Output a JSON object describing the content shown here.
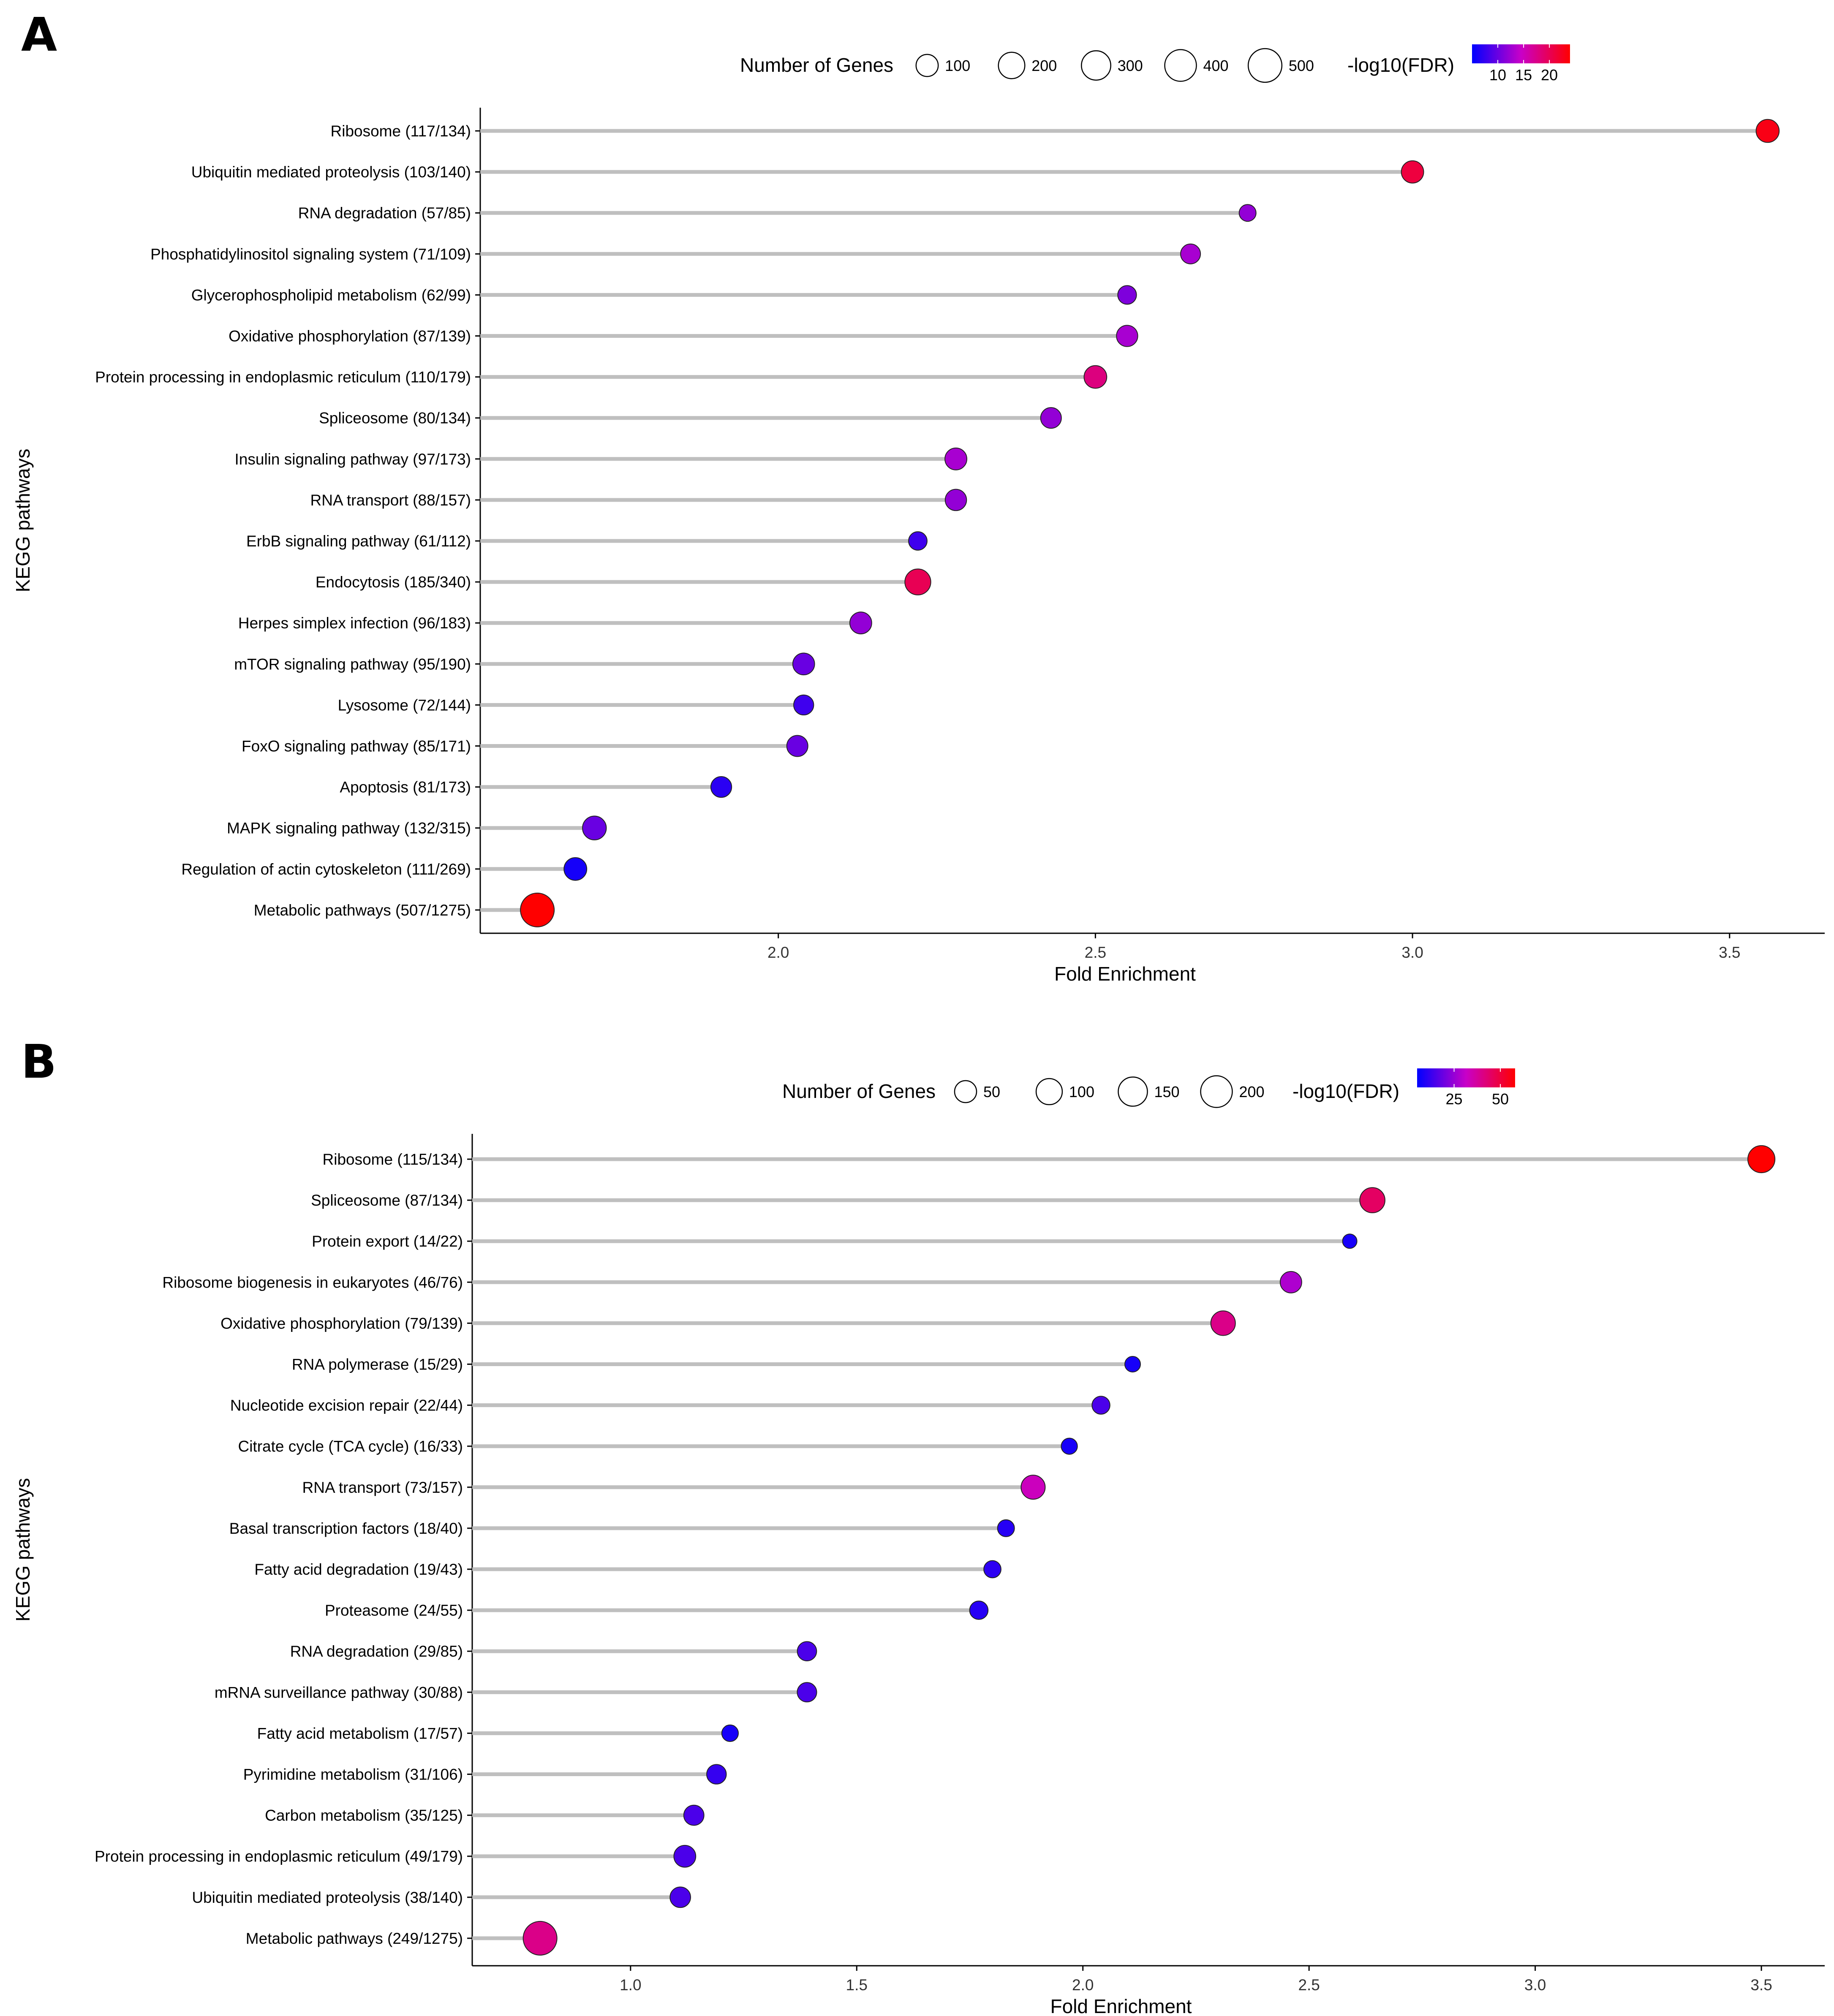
{
  "panels": [
    {
      "letter": "A",
      "chart_data": {
        "type": "scatter",
        "subtype": "lollipop",
        "title": "",
        "xlabel": "Fold Enrichment",
        "ylabel": "KEGG pathways",
        "xlim": [
          1.53,
          3.65
        ],
        "xticks": [
          {
            "v": 2.0,
            "label": "2.0"
          },
          {
            "v": 2.5,
            "label": "2.5"
          },
          {
            "v": 3.0,
            "label": "3.0"
          },
          {
            "v": 3.5,
            "label": "3.5"
          }
        ],
        "size_legend_title": "Number of Genes",
        "size_legend": [
          {
            "v": 100,
            "label": "100"
          },
          {
            "v": 200,
            "label": "200"
          },
          {
            "v": 300,
            "label": "300"
          },
          {
            "v": 400,
            "label": "400"
          },
          {
            "v": 500,
            "label": "500"
          }
        ],
        "color_legend_title": "-log10(FDR)",
        "color_range": [
          5,
          24
        ],
        "color_ticks": [
          {
            "v": 10,
            "label": "10"
          },
          {
            "v": 15,
            "label": "15"
          },
          {
            "v": 20,
            "label": "20"
          }
        ],
        "categories": [
          "Ribosome (117/134)",
          "Ubiquitin mediated proteolysis (103/140)",
          "RNA degradation (57/85)",
          "Phosphatidylinositol signaling system (71/109)",
          "Glycerophospholipid metabolism (62/99)",
          "Oxidative phosphorylation (87/139)",
          "Protein processing in endoplasmic reticulum (110/179)",
          "Spliceosome (80/134)",
          "Insulin signaling pathway (97/173)",
          "RNA transport (88/157)",
          "ErbB signaling pathway (61/112)",
          "Endocytosis (185/340)",
          "Herpes simplex infection (96/183)",
          "mTOR signaling pathway (95/190)",
          "Lysosome (72/144)",
          "FoxO signaling pathway (85/171)",
          "Apoptosis (81/173)",
          "MAPK signaling pathway (132/315)",
          "Regulation of actin cytoskeleton (111/269)",
          "Metabolic pathways (507/1275)"
        ],
        "fold_enrichment": [
          3.56,
          3.0,
          2.74,
          2.65,
          2.55,
          2.55,
          2.5,
          2.43,
          2.28,
          2.28,
          2.22,
          2.22,
          2.13,
          2.04,
          2.04,
          2.03,
          1.91,
          1.71,
          1.68,
          1.62
        ],
        "gene_counts": [
          117,
          103,
          57,
          71,
          62,
          87,
          110,
          80,
          97,
          88,
          61,
          185,
          96,
          95,
          72,
          85,
          81,
          132,
          111,
          507
        ],
        "neg_log10_fdr": [
          23,
          21,
          12,
          13,
          11,
          13,
          18,
          12,
          13,
          12,
          8,
          20,
          12,
          10,
          8,
          10,
          7,
          10,
          6,
          24
        ]
      }
    },
    {
      "letter": "B",
      "chart_data": {
        "type": "scatter",
        "subtype": "lollipop",
        "title": "",
        "xlabel": "Fold Enrichment",
        "ylabel": "KEGG pathways",
        "xlim": [
          0.65,
          3.64
        ],
        "xticks": [
          {
            "v": 1.0,
            "label": "1.0"
          },
          {
            "v": 1.5,
            "label": "1.5"
          },
          {
            "v": 2.0,
            "label": "2.0"
          },
          {
            "v": 2.5,
            "label": "2.5"
          },
          {
            "v": 3.0,
            "label": "3.0"
          },
          {
            "v": 3.5,
            "label": "3.5"
          }
        ],
        "size_legend_title": "Number of Genes",
        "size_legend": [
          {
            "v": 50,
            "label": "50"
          },
          {
            "v": 100,
            "label": "100"
          },
          {
            "v": 150,
            "label": "150"
          },
          {
            "v": 200,
            "label": "200"
          }
        ],
        "color_legend_title": "-log10(FDR)",
        "color_range": [
          5,
          58
        ],
        "color_ticks": [
          {
            "v": 25,
            "label": "25"
          },
          {
            "v": 50,
            "label": "50"
          }
        ],
        "categories": [
          "Ribosome (115/134)",
          "Spliceosome (87/134)",
          "Protein export (14/22)",
          "Ribosome biogenesis in eukaryotes (46/76)",
          "Oxidative phosphorylation (79/139)",
          "RNA polymerase (15/29)",
          "Nucleotide excision repair (22/44)",
          "Citrate cycle (TCA cycle) (16/33)",
          "RNA transport (73/157)",
          "Basal transcription factors (18/40)",
          "Fatty acid degradation (19/43)",
          "Proteasome (24/55)",
          "RNA degradation (29/85)",
          "mRNA surveillance pathway (30/88)",
          "Fatty acid metabolism (17/57)",
          "Pyrimidine metabolism (31/106)",
          "Carbon metabolism (35/125)",
          "Protein processing in endoplasmic reticulum (49/179)",
          "Ubiquitin mediated proteolysis (38/140)",
          "Metabolic pathways (249/1275)"
        ],
        "fold_enrichment": [
          3.5,
          2.64,
          2.59,
          2.46,
          2.31,
          2.11,
          2.04,
          1.97,
          1.89,
          1.83,
          1.8,
          1.77,
          1.39,
          1.39,
          1.22,
          1.19,
          1.14,
          1.12,
          1.11,
          0.8
        ],
        "gene_counts": [
          115,
          87,
          14,
          46,
          79,
          15,
          22,
          16,
          73,
          18,
          19,
          24,
          29,
          30,
          17,
          31,
          35,
          49,
          38,
          249
        ],
        "neg_log10_fdr": [
          58,
          45,
          8,
          28,
          40,
          8,
          15,
          8,
          33,
          10,
          11,
          10,
          15,
          15,
          8,
          12,
          15,
          15,
          15,
          40
        ]
      }
    }
  ]
}
